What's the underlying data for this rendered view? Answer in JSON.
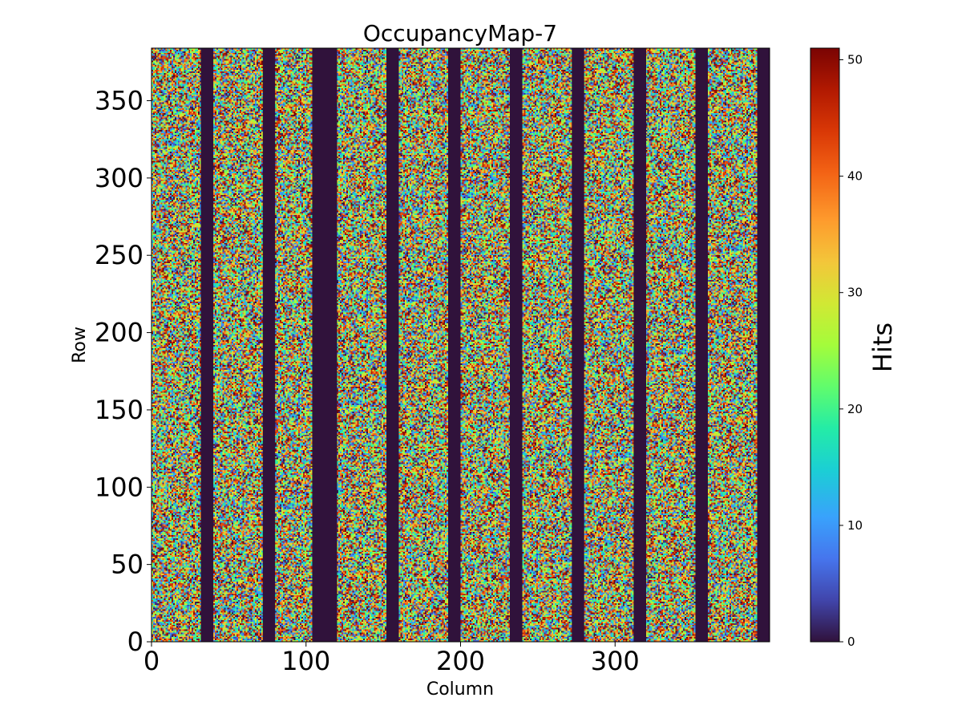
{
  "chart_data": {
    "type": "heatmap",
    "title": "OccupancyMap-7",
    "xlabel": "Column",
    "ylabel": "Row",
    "xlim": [
      0,
      400
    ],
    "ylim": [
      0,
      384
    ],
    "x_ticks": [
      0,
      100,
      200,
      300
    ],
    "y_ticks": [
      0,
      50,
      100,
      150,
      200,
      250,
      300,
      350
    ],
    "colorbar": {
      "label": "Hits",
      "colormap": "turbo",
      "vmin": 0,
      "vmax": 51,
      "ticks": [
        0,
        10,
        20,
        30,
        40,
        50
      ]
    },
    "value_distribution": {
      "active_columns": "random hits roughly uniform 0-51",
      "dead_columns": 0
    },
    "dead_column_ranges": [
      [
        32,
        40
      ],
      [
        72,
        80
      ],
      [
        104,
        120
      ],
      [
        152,
        160
      ],
      [
        192,
        200
      ],
      [
        232,
        240
      ],
      [
        272,
        280
      ],
      [
        312,
        320
      ],
      [
        352,
        360
      ],
      [
        392,
        400
      ]
    ]
  }
}
